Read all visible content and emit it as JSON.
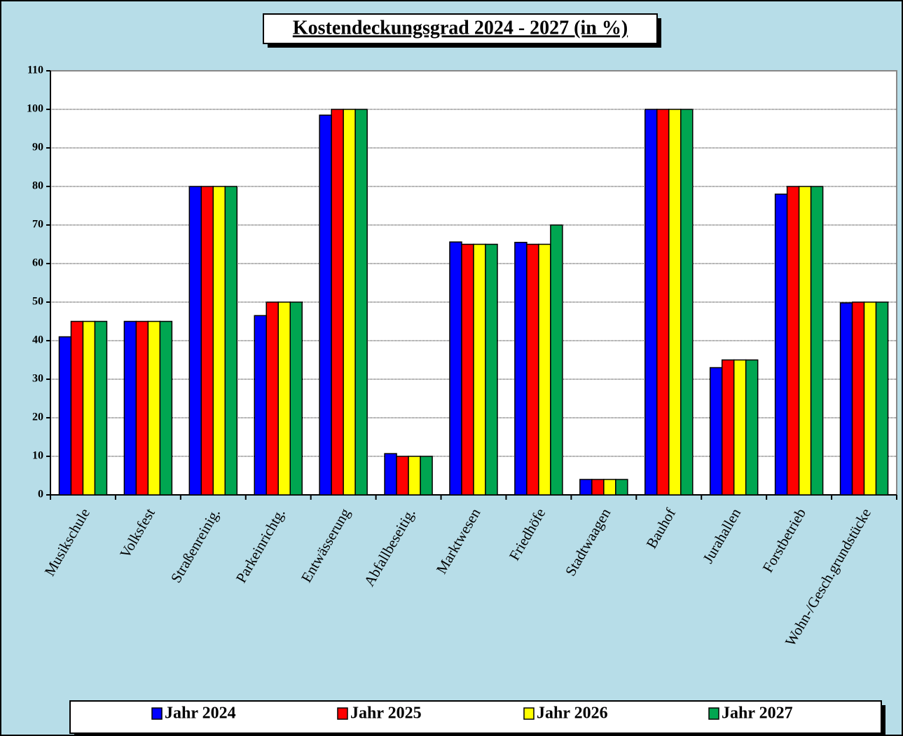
{
  "chart_data": {
    "type": "bar",
    "title": "Kostendeckungsgrad 2024 - 2027 (in %)",
    "categories": [
      "Musikschule",
      "Volksfest",
      "Straßenreinig.",
      "Parkeinrichtg.",
      "Entwässerung",
      "Abfallbeseitig.",
      "Marktwesen",
      "Friedhöfe",
      "Stadtwaagen",
      "Bauhof",
      "Jurahallen",
      "Forstbetrieb",
      "Wohn-/Gesch.grundstücke"
    ],
    "series": [
      {
        "name": "Jahr 2024",
        "color": "#0000ff",
        "values": [
          41,
          45,
          80,
          46.5,
          98.5,
          10.7,
          65.6,
          65.5,
          4,
          100,
          33,
          78,
          49.8
        ]
      },
      {
        "name": "Jahr 2025",
        "color": "#ff0000",
        "values": [
          45,
          45,
          80,
          50,
          100,
          10,
          65,
          65,
          4,
          100,
          35,
          80,
          50
        ]
      },
      {
        "name": "Jahr 2026",
        "color": "#ffff00",
        "values": [
          45,
          45,
          80,
          50,
          100,
          10,
          65,
          65,
          4,
          100,
          35,
          80,
          50
        ]
      },
      {
        "name": "Jahr 2027",
        "color": "#00a651",
        "values": [
          45,
          45,
          80,
          50,
          100,
          10,
          65,
          70,
          4,
          100,
          35,
          80,
          50
        ]
      }
    ],
    "ylim": [
      0,
      110
    ],
    "yticks": [
      0,
      10,
      20,
      30,
      40,
      50,
      60,
      70,
      80,
      90,
      100,
      110
    ],
    "grid": true,
    "legend": "bottom"
  }
}
